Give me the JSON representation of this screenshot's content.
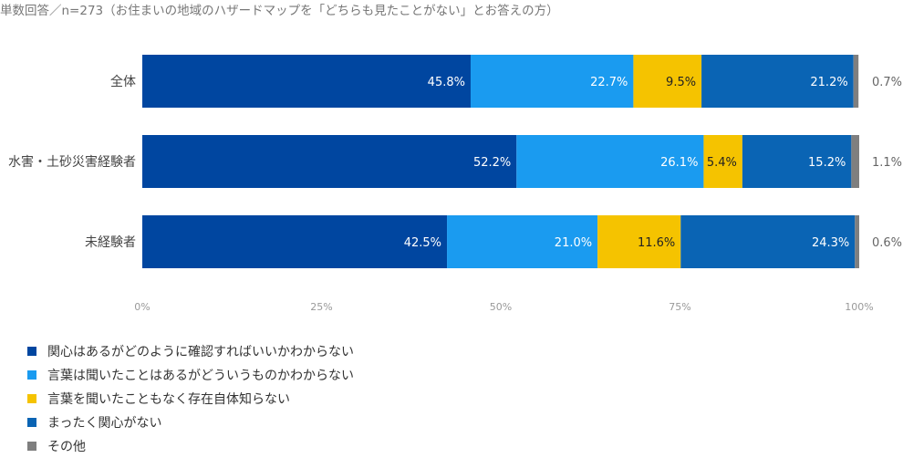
{
  "chart_data": {
    "type": "bar",
    "orientation": "horizontal",
    "stacked": true,
    "percent_stacked": true,
    "title": "単数回答／n=273（お住まいの地域のハザードマップを「どちらも見たことがない」とお答えの方）",
    "categories": [
      "全体",
      "水害・土砂災害経験者",
      "未経験者"
    ],
    "series": [
      {
        "name": "関心はあるがどのように確認すればいいかわからない",
        "color": "#0046A0",
        "values": [
          45.8,
          52.2,
          42.5
        ]
      },
      {
        "name": "言葉は聞いたことはあるがどういうものかわからない",
        "color": "#1A9BF0",
        "values": [
          22.7,
          26.1,
          21.0
        ]
      },
      {
        "name": "言葉を聞いたこともなく存在自体知らない",
        "color": "#F5C300",
        "values": [
          9.5,
          5.4,
          11.6
        ]
      },
      {
        "name": "まったく関心がない",
        "color": "#0A64B4",
        "values": [
          21.2,
          15.2,
          24.3
        ]
      },
      {
        "name": "その他",
        "color": "#7F7F7F",
        "values": [
          0.7,
          1.1,
          0.6
        ]
      }
    ],
    "data_labels": [
      [
        "45.8%",
        "22.7%",
        "9.5%",
        "21.2%",
        "0.7%"
      ],
      [
        "52.2%",
        "26.1%",
        "5.4%",
        "15.2%",
        "1.1%"
      ],
      [
        "42.5%",
        "21.0%",
        "11.6%",
        "24.3%",
        "0.6%"
      ]
    ],
    "xlim": [
      0,
      100
    ],
    "xticks": [
      "0%",
      "25%",
      "50%",
      "75%",
      "100%"
    ],
    "grid": false,
    "legend_position": "bottom-left"
  }
}
